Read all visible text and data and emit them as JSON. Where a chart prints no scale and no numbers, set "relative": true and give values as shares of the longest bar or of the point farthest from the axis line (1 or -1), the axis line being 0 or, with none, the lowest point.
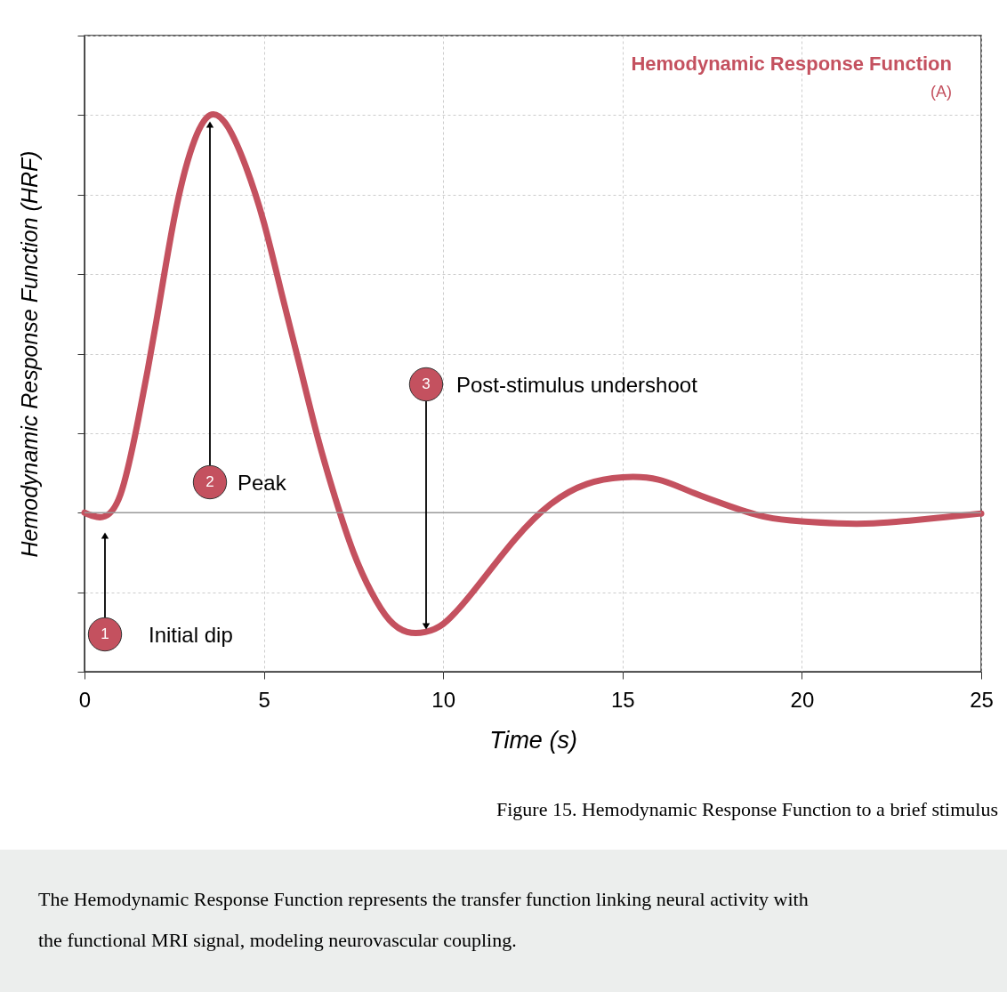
{
  "chart_data": {
    "type": "line",
    "relative": true,
    "title": "Hemodynamic Response Function",
    "subtitle": "(A)",
    "xlabel": "Time (s)",
    "ylabel": "Hemodynamic Response Function (HRF)",
    "x": [
      0,
      0.5,
      1.0,
      1.5,
      2.0,
      2.5,
      3.0,
      3.5,
      4.0,
      4.5,
      5.0,
      5.5,
      6.0,
      6.5,
      7.0,
      7.5,
      8.0,
      8.5,
      9.0,
      9.5,
      10.0,
      10.5,
      11,
      12,
      13,
      14,
      15,
      16,
      17,
      18,
      19,
      20,
      21,
      22,
      23,
      24,
      25
    ],
    "series": [
      {
        "color": "#c4515f",
        "values": [
          0,
          -0.011,
          0.045,
          0.235,
          0.48,
          0.74,
          0.92,
          1.0,
          0.97,
          0.87,
          0.73,
          0.55,
          0.37,
          0.19,
          0.034,
          -0.1,
          -0.2,
          -0.27,
          -0.3,
          -0.3,
          -0.28,
          -0.235,
          -0.18,
          -0.067,
          0.022,
          0.072,
          0.089,
          0.083,
          0.049,
          0.016,
          -0.011,
          -0.022,
          -0.027,
          -0.027,
          -0.02,
          -0.011,
          -0.002
        ]
      }
    ],
    "xlim": [
      0,
      25
    ],
    "xticks": [
      0,
      5,
      10,
      15,
      20,
      25
    ],
    "grid": true,
    "line_style": "solid",
    "marker": "none",
    "annotations": [
      "1",
      "Initial dip",
      "2",
      "Peak",
      "3",
      "Post-stimulus undershoot",
      "Figure 15. Hemodynamic Response Function to a brief stimulus",
      "The Hemodynamic Response Function represents the transfer function linking neural activity with the functional MRI signal, modeling neurovascular coupling."
    ]
  }
}
